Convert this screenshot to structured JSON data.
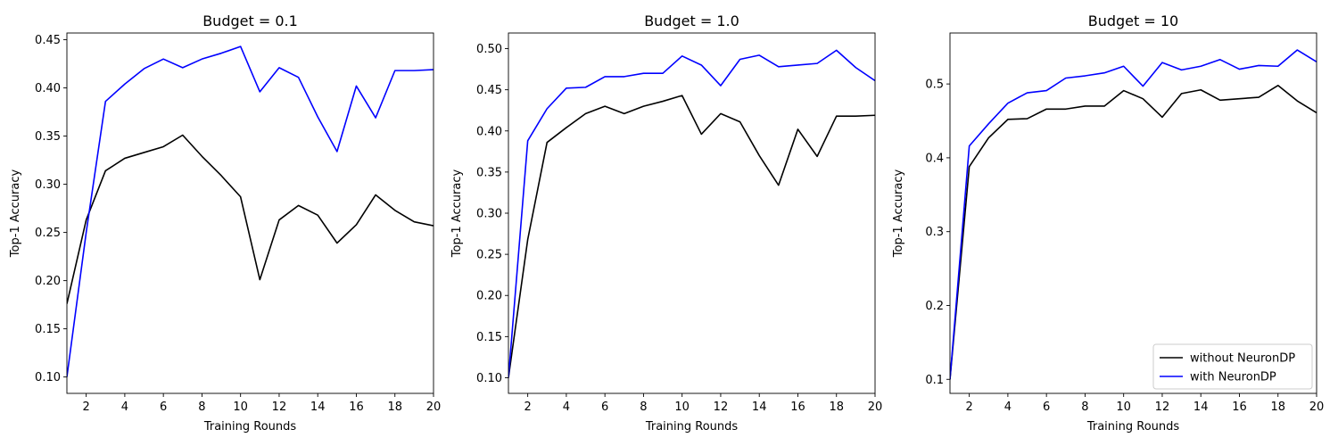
{
  "chart_data": [
    {
      "type": "line",
      "title": "Budget = 0.1",
      "xlabel": "Training Rounds",
      "ylabel": "Top-1 Accuracy",
      "xlim": [
        1,
        20
      ],
      "ylim": [
        0.083,
        0.457
      ],
      "xticks": [
        2,
        4,
        6,
        8,
        10,
        12,
        14,
        16,
        18,
        20
      ],
      "yticks": [
        0.1,
        0.15,
        0.2,
        0.25,
        0.3,
        0.35,
        0.4,
        0.45
      ],
      "yticklabels": [
        "0.10",
        "0.15",
        "0.20",
        "0.25",
        "0.30",
        "0.35",
        "0.40",
        "0.45"
      ],
      "grid": false,
      "legend": "none",
      "x": [
        1,
        2,
        3,
        4,
        5,
        6,
        7,
        8,
        9,
        10,
        11,
        12,
        13,
        14,
        15,
        16,
        17,
        18,
        19,
        20
      ],
      "series": [
        {
          "name": "without NeuronDP",
          "color": "#000000",
          "values": [
            0.176,
            0.263,
            0.314,
            0.327,
            0.333,
            0.339,
            0.351,
            0.329,
            0.309,
            0.287,
            0.201,
            0.263,
            0.278,
            0.268,
            0.239,
            0.258,
            0.289,
            0.273,
            0.261,
            0.257
          ]
        },
        {
          "name": "with NeuronDP",
          "color": "#0000ff",
          "values": [
            0.1,
            0.25,
            0.386,
            0.404,
            0.42,
            0.43,
            0.421,
            0.43,
            0.436,
            0.443,
            0.396,
            0.421,
            0.411,
            0.37,
            0.334,
            0.402,
            0.369,
            0.418,
            0.418,
            0.419
          ]
        }
      ]
    },
    {
      "type": "line",
      "title": "Budget = 1.0",
      "xlabel": "Training Rounds",
      "ylabel": "Top-1 Accuracy",
      "xlim": [
        1,
        20
      ],
      "ylim": [
        0.081,
        0.519
      ],
      "xticks": [
        2,
        4,
        6,
        8,
        10,
        12,
        14,
        16,
        18,
        20
      ],
      "yticks": [
        0.1,
        0.15,
        0.2,
        0.25,
        0.3,
        0.35,
        0.4,
        0.45,
        0.5
      ],
      "yticklabels": [
        "0.10",
        "0.15",
        "0.20",
        "0.25",
        "0.30",
        "0.35",
        "0.40",
        "0.45",
        "0.50"
      ],
      "grid": false,
      "legend": "none",
      "x": [
        1,
        2,
        3,
        4,
        5,
        6,
        7,
        8,
        9,
        10,
        11,
        12,
        13,
        14,
        15,
        16,
        17,
        18,
        19,
        20
      ],
      "series": [
        {
          "name": "without NeuronDP",
          "color": "#000000",
          "values": [
            0.1,
            0.268,
            0.386,
            0.404,
            0.421,
            0.43,
            0.421,
            0.43,
            0.436,
            0.443,
            0.396,
            0.421,
            0.411,
            0.37,
            0.334,
            0.402,
            0.369,
            0.418,
            0.418,
            0.419
          ]
        },
        {
          "name": "with NeuronDP",
          "color": "#0000ff",
          "values": [
            0.1,
            0.388,
            0.427,
            0.452,
            0.453,
            0.466,
            0.466,
            0.47,
            0.47,
            0.491,
            0.48,
            0.455,
            0.487,
            0.492,
            0.478,
            0.48,
            0.482,
            0.498,
            0.477,
            0.461
          ]
        }
      ]
    },
    {
      "type": "line",
      "title": "Budget = 10",
      "xlabel": "Training Rounds",
      "ylabel": "Top-1 Accuracy",
      "xlim": [
        1,
        20
      ],
      "ylim": [
        0.081,
        0.569
      ],
      "xticks": [
        2,
        4,
        6,
        8,
        10,
        12,
        14,
        16,
        18,
        20
      ],
      "yticks": [
        0.1,
        0.2,
        0.3,
        0.4,
        0.5
      ],
      "yticklabels": [
        "0.1",
        "0.2",
        "0.3",
        "0.4",
        "0.5"
      ],
      "grid": false,
      "legend": "lower right",
      "x": [
        1,
        2,
        3,
        4,
        5,
        6,
        7,
        8,
        9,
        10,
        11,
        12,
        13,
        14,
        15,
        16,
        17,
        18,
        19,
        20
      ],
      "series": [
        {
          "name": "without NeuronDP",
          "color": "#000000",
          "values": [
            0.1,
            0.388,
            0.427,
            0.452,
            0.453,
            0.466,
            0.466,
            0.47,
            0.47,
            0.491,
            0.48,
            0.455,
            0.487,
            0.492,
            0.478,
            0.48,
            0.482,
            0.498,
            0.477,
            0.461
          ]
        },
        {
          "name": "with NeuronDP",
          "color": "#0000ff",
          "values": [
            0.1,
            0.416,
            0.446,
            0.474,
            0.488,
            0.491,
            0.508,
            0.511,
            0.515,
            0.524,
            0.497,
            0.529,
            0.519,
            0.524,
            0.533,
            0.52,
            0.525,
            0.524,
            0.546,
            0.53
          ]
        }
      ]
    }
  ]
}
